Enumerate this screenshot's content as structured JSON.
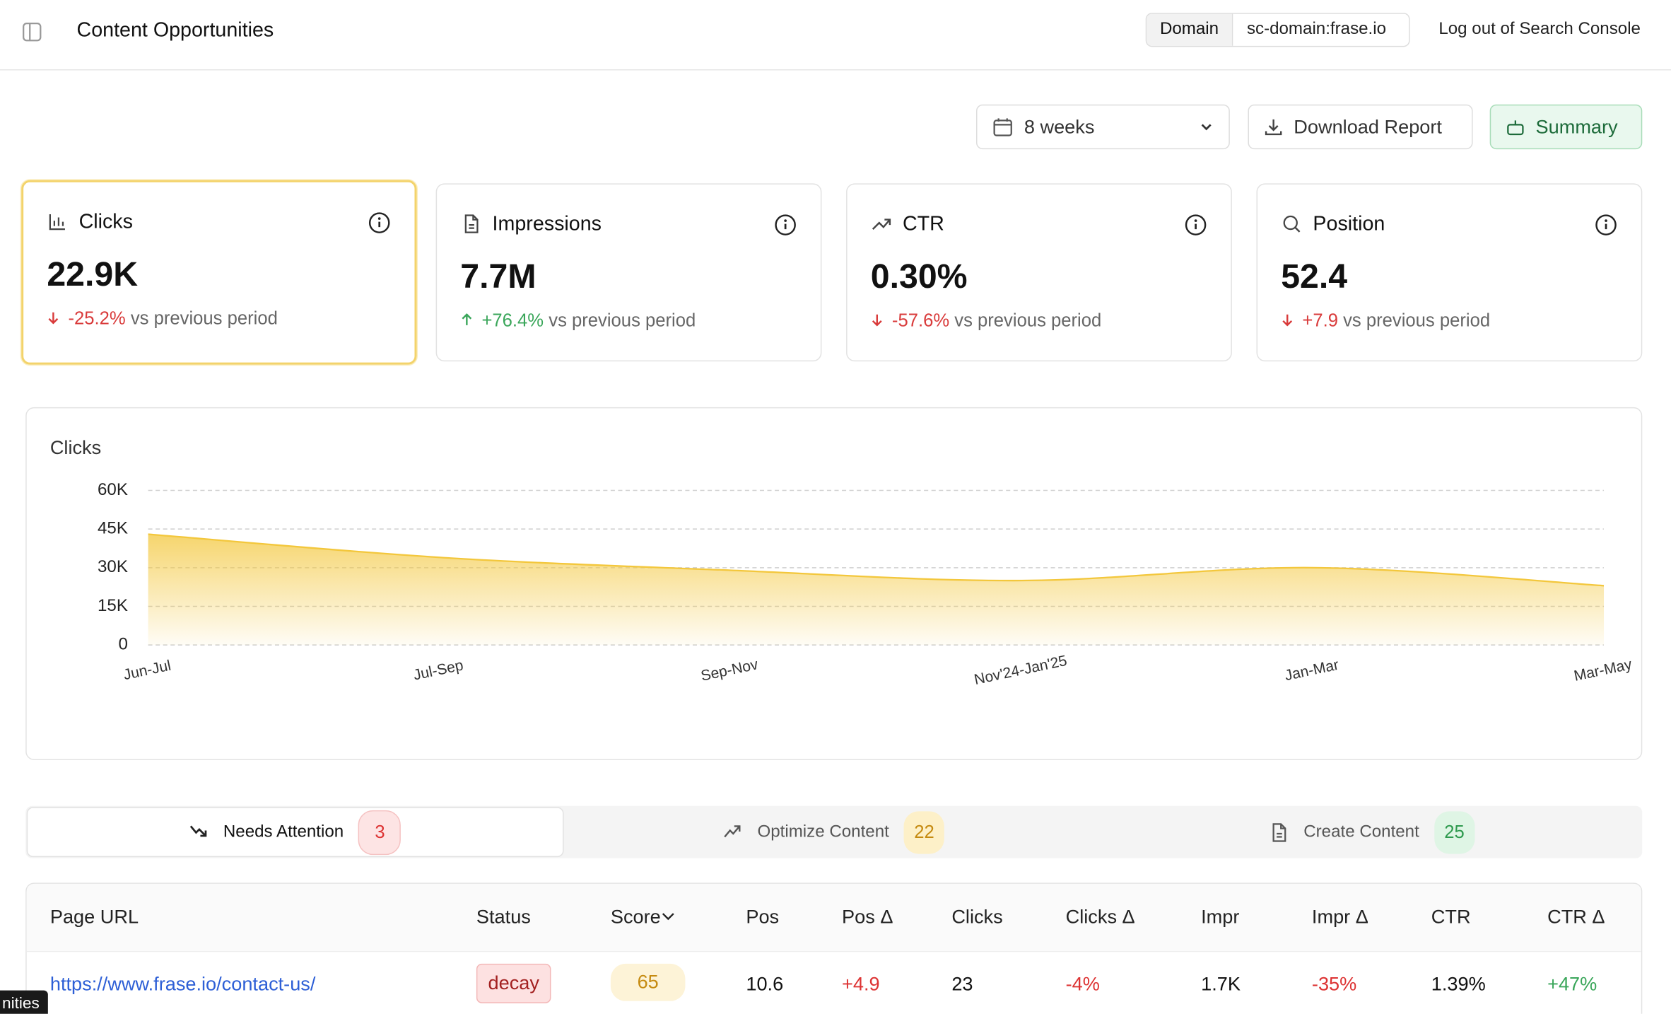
{
  "header": {
    "title": "Content Opportunities",
    "domain_label": "Domain",
    "domain_value": "sc-domain:frase.io",
    "logout": "Log out of Search Console"
  },
  "toolbar": {
    "period": "8 weeks",
    "download": "Download Report",
    "summary": "Summary"
  },
  "metrics": [
    {
      "title": "Clicks",
      "value": "22.9K",
      "change": "-25.2%",
      "trend": "down",
      "comparison": "vs previous period"
    },
    {
      "title": "Impressions",
      "value": "7.7M",
      "change": "+76.4%",
      "trend": "up",
      "comparison": "vs previous period"
    },
    {
      "title": "CTR",
      "value": "0.30%",
      "change": "-57.6%",
      "trend": "down",
      "comparison": "vs previous period"
    },
    {
      "title": "Position",
      "value": "52.4",
      "change": "+7.9",
      "trend": "down",
      "comparison": "vs previous period"
    }
  ],
  "chart_data": {
    "type": "area",
    "title": "Clicks",
    "categories": [
      "Jun-Jul",
      "Jul-Sep",
      "Sep-Nov",
      "Nov'24-Jan'25",
      "Jan-Mar",
      "Mar-May"
    ],
    "values": [
      43000,
      34000,
      29000,
      25000,
      30000,
      23000
    ],
    "color": "#f3c73c",
    "ylim": [
      0,
      60000
    ],
    "yticks": [
      0,
      {
        "value": 15000,
        "label": "15K"
      },
      {
        "value": 30000,
        "label": "30K"
      },
      {
        "value": 45000,
        "label": "45K"
      },
      {
        "value": 60000,
        "label": "60K"
      }
    ],
    "grid": true
  },
  "tabs": [
    {
      "label": "Needs Attention",
      "count": "3"
    },
    {
      "label": "Optimize Content",
      "count": "22"
    },
    {
      "label": "Create Content",
      "count": "25"
    }
  ],
  "table": {
    "headers": [
      "Page URL",
      "Status",
      "Score",
      "Pos",
      "Pos Δ",
      "Clicks",
      "Clicks Δ",
      "Impr",
      "Impr Δ",
      "CTR",
      "CTR Δ"
    ],
    "rows": [
      [
        "https://www.frase.io/contact-us/",
        "decay",
        "65",
        "10.6",
        "+4.9",
        "23",
        "-4%",
        "1.7K",
        "-35%",
        "1.39%",
        "+47%"
      ]
    ]
  },
  "tooltip": "nities"
}
